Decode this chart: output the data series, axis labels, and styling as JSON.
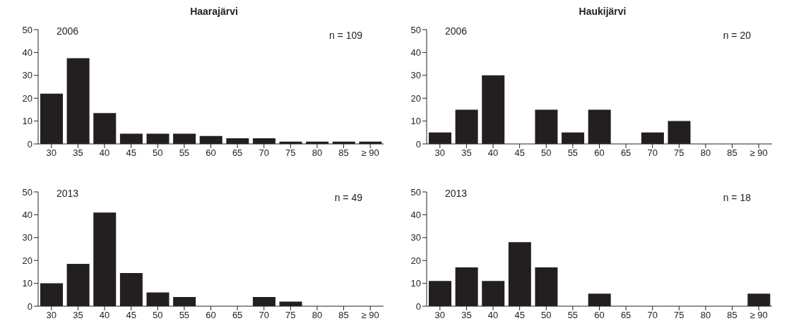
{
  "chart_data": [
    {
      "type": "bar",
      "title": "Haarajärvi",
      "annotations": [
        "2006",
        "n = 109"
      ],
      "categories": [
        "30",
        "35",
        "40",
        "45",
        "50",
        "55",
        "60",
        "65",
        "70",
        "75",
        "80",
        "85",
        "≥ 90"
      ],
      "color": "#231f20",
      "ylim": [
        0,
        50
      ],
      "yticks": [
        0,
        10,
        20,
        30,
        40,
        50
      ],
      "values": [
        22,
        37.5,
        13.5,
        4.5,
        4.5,
        4.5,
        3.5,
        2.5,
        2.5,
        1,
        1,
        1,
        1
      ]
    },
    {
      "type": "bar",
      "title": "Haukijärvi",
      "annotations": [
        "2006",
        "n = 20"
      ],
      "categories": [
        "30",
        "35",
        "40",
        "45",
        "50",
        "55",
        "60",
        "65",
        "70",
        "75",
        "80",
        "85",
        "≥ 90"
      ],
      "color": "#231f20",
      "ylim": [
        0,
        50
      ],
      "yticks": [
        0,
        10,
        20,
        30,
        40,
        50
      ],
      "values": [
        5,
        15,
        30,
        0,
        15,
        5,
        15,
        0,
        5,
        10,
        0,
        0,
        0
      ]
    },
    {
      "type": "bar",
      "annotations": [
        "2013",
        "n = 49"
      ],
      "categories": [
        "30",
        "35",
        "40",
        "45",
        "50",
        "55",
        "60",
        "65",
        "70",
        "75",
        "80",
        "85",
        "≥ 90"
      ],
      "color": "#231f20",
      "ylim": [
        0,
        50
      ],
      "yticks": [
        0,
        10,
        20,
        30,
        40,
        50
      ],
      "values": [
        10,
        18.5,
        41,
        14.5,
        6,
        4,
        0,
        0,
        4,
        2,
        0,
        0,
        0
      ]
    },
    {
      "type": "bar",
      "annotations": [
        "2013",
        "n = 18"
      ],
      "categories": [
        "30",
        "35",
        "40",
        "45",
        "50",
        "55",
        "60",
        "65",
        "70",
        "75",
        "80",
        "85",
        "≥ 90"
      ],
      "color": "#231f20",
      "ylim": [
        0,
        50
      ],
      "yticks": [
        0,
        10,
        20,
        30,
        40,
        50
      ],
      "values": [
        11,
        17,
        11,
        28,
        17,
        0,
        5.5,
        0,
        0,
        0,
        0,
        0,
        5.5
      ]
    }
  ]
}
